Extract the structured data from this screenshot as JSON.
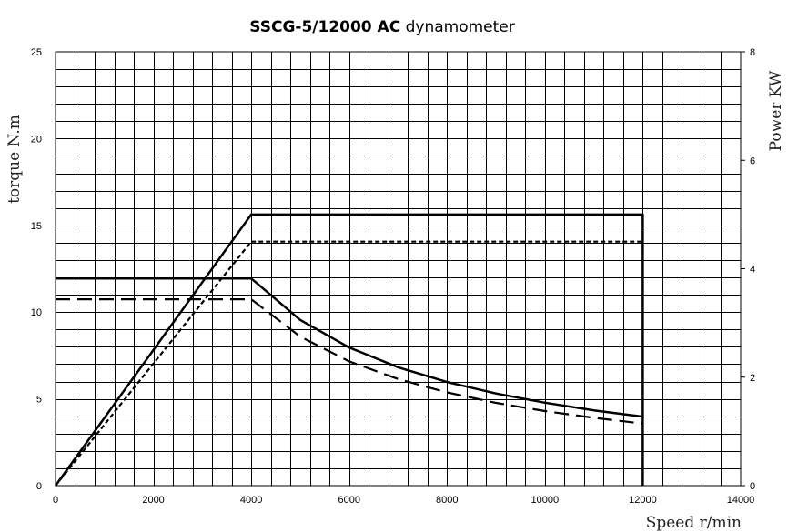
{
  "chart_data": {
    "type": "line",
    "title": "SSCG-5/12000 AC dynamometer",
    "title_bold_part": "SSCG-5/12000 AC",
    "title_rest": " dynamometer",
    "xlabel": "Speed r/min",
    "ylabel": "torque N.m",
    "y2label": "Power KW",
    "xlim": [
      0,
      14000
    ],
    "ylim": [
      0,
      25
    ],
    "y2lim": [
      0,
      8
    ],
    "x_ticks": [
      0,
      2000,
      4000,
      6000,
      8000,
      10000,
      12000,
      14000
    ],
    "y_ticks": [
      0,
      5,
      10,
      15,
      20,
      25
    ],
    "y2_ticks": [
      0,
      2,
      4,
      6,
      8
    ],
    "grid": true,
    "grid_x_step": 400,
    "grid_y_step": 1,
    "series": [
      {
        "axis": "y2",
        "style": "solid",
        "color": "#000000",
        "x": [
          0,
          4000,
          12000,
          12000
        ],
        "y": [
          0,
          5.0,
          5.0,
          0
        ]
      },
      {
        "axis": "y2",
        "style": "dotted",
        "color": "#000000",
        "x": [
          0,
          4000,
          12000
        ],
        "y": [
          0,
          4.5,
          4.5
        ]
      },
      {
        "axis": "y",
        "style": "solid",
        "color": "#000000",
        "x": [
          0,
          4000,
          5000,
          6000,
          7000,
          8000,
          9000,
          10000,
          11000,
          12000
        ],
        "y": [
          11.94,
          11.94,
          9.55,
          7.96,
          6.82,
          5.97,
          5.31,
          4.78,
          4.34,
          3.98
        ]
      },
      {
        "axis": "y",
        "style": "dashed",
        "color": "#000000",
        "x": [
          0,
          4000,
          5000,
          6000,
          7000,
          8000,
          9000,
          10000,
          11000,
          12000
        ],
        "y": [
          10.74,
          10.74,
          8.59,
          7.16,
          6.14,
          5.37,
          4.77,
          4.3,
          3.91,
          3.58
        ]
      }
    ]
  }
}
